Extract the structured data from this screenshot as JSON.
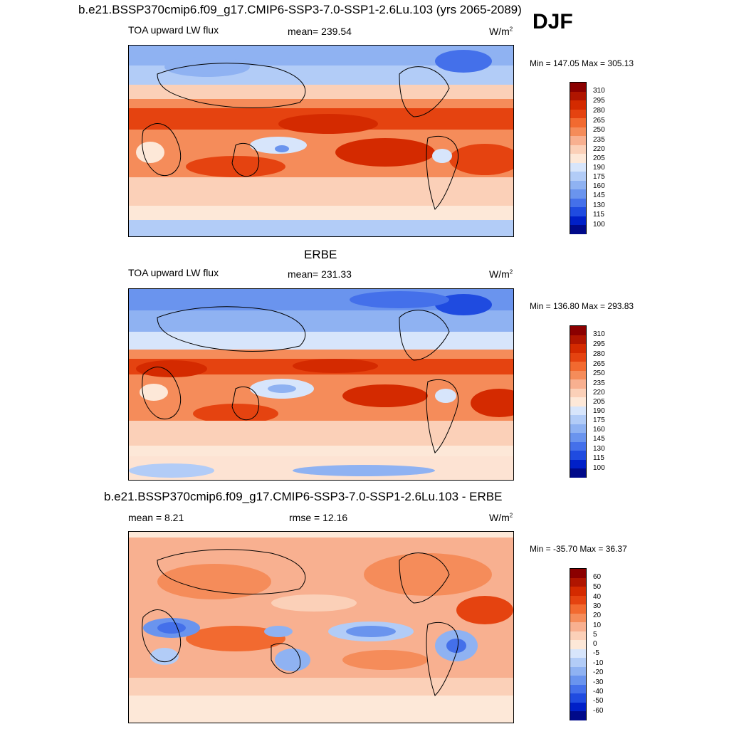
{
  "figure": {
    "title": "b.e21.BSSP370cmip6.f09_g17.CMIP6-SSP3-7.0-SSP1-2.6Lu.103 (yrs 2065-2089)",
    "season": "DJF"
  },
  "panels": [
    {
      "left_label": "TOA upward LW flux",
      "center_label": "mean= 239.54",
      "units_base": "W/m",
      "units_exp": "2",
      "minmax": "Min = 147.05 Max = 305.13"
    },
    {
      "title": "ERBE",
      "left_label": "TOA upward LW flux",
      "center_label": "mean= 231.33",
      "units_base": "W/m",
      "units_exp": "2",
      "minmax": "Min = 136.80 Max = 293.83"
    },
    {
      "title": "b.e21.BSSP370cmip6.f09_g17.CMIP6-SSP3-7.0-SSP1-2.6Lu.103 - ERBE",
      "left_label": "mean =   8.21",
      "center_label": "rmse =  12.16",
      "units_base": "W/m",
      "units_exp": "2",
      "minmax": "Min = -35.70 Max =  36.37"
    }
  ],
  "colorbars": {
    "absolute": {
      "labels": [
        "310",
        "295",
        "280",
        "265",
        "250",
        "235",
        "220",
        "205",
        "190",
        "175",
        "160",
        "145",
        "130",
        "115",
        "100"
      ],
      "colors": [
        "#8b0000",
        "#b01500",
        "#d42a00",
        "#e54310",
        "#f26a30",
        "#f58c5a",
        "#f8b090",
        "#fbd0b8",
        "#fde8d8",
        "#d7e5fb",
        "#b2ccf7",
        "#8fb2f2",
        "#6a94ee",
        "#4470ea",
        "#1f4be0",
        "#0020c8",
        "#000a8a"
      ]
    },
    "difference": {
      "labels": [
        "60",
        "50",
        "40",
        "30",
        "20",
        "10",
        "5",
        "0",
        "-5",
        "-10",
        "-20",
        "-30",
        "-40",
        "-50",
        "-60"
      ],
      "colors": [
        "#8b0000",
        "#b01500",
        "#d42a00",
        "#e54310",
        "#f26a30",
        "#f58c5a",
        "#f8b090",
        "#fbd0b8",
        "#fde8d8",
        "#d7e5fb",
        "#b2ccf7",
        "#8fb2f2",
        "#6a94ee",
        "#4470ea",
        "#1f4be0",
        "#0020c8",
        "#000a8a"
      ]
    }
  }
}
